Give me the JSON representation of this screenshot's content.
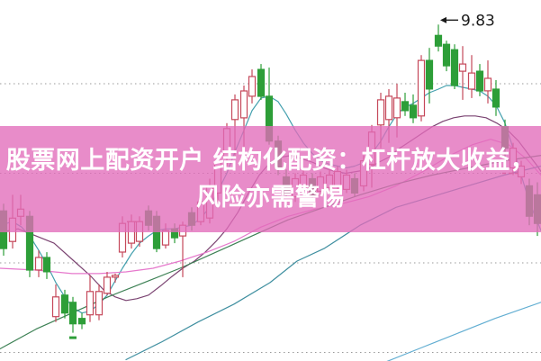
{
  "banner": {
    "line1": "股票网上配资开户 结构化配资：杠杆放大收益，",
    "line2": "风险亦需警惕",
    "bg_color_rgba": "rgba(226,108,186,0.78)",
    "text_color": "#ffffff"
  },
  "annotation": {
    "label": "9.83",
    "text_color": "#1a1a1a",
    "target_x": 487,
    "target_price": 9.83
  },
  "colors": {
    "background": "#ffffff",
    "grid": "#9a9a9a",
    "up_candle": "#c5485a",
    "down_candle": "#2d9e38"
  },
  "chart_data": {
    "type": "candlestick",
    "title": "",
    "xlabel": "",
    "ylabel": "",
    "ylim": [
      7.95,
      10.0
    ],
    "grid": "dotted-horizontal",
    "gridline_prices": [
      9.5,
      9.0,
      8.5,
      8.0
    ],
    "axis_note": "no visible axis labels; single price flag 9.83 at the rally high",
    "candles_format": [
      "x_px",
      "open",
      "high",
      "low",
      "close"
    ],
    "candles": [
      [
        4,
        8.79,
        8.83,
        8.54,
        8.58
      ],
      [
        14,
        8.62,
        8.88,
        8.58,
        8.75
      ],
      [
        23,
        8.76,
        8.88,
        8.71,
        8.8
      ],
      [
        33,
        8.76,
        8.79,
        8.42,
        8.46
      ],
      [
        43,
        8.46,
        8.57,
        8.42,
        8.53
      ],
      [
        52,
        8.53,
        8.56,
        8.41,
        8.45
      ],
      [
        62,
        8.2,
        8.38,
        8.17,
        8.31
      ],
      [
        72,
        8.32,
        8.35,
        8.19,
        8.22
      ],
      [
        81,
        8.28,
        8.31,
        8.11,
        8.16
      ],
      [
        91,
        8.19,
        8.22,
        8.13,
        8.16
      ],
      [
        100,
        8.21,
        8.43,
        8.17,
        8.34
      ],
      [
        110,
        8.21,
        8.38,
        8.18,
        8.34
      ],
      [
        119,
        8.33,
        8.45,
        8.32,
        8.42
      ],
      [
        128,
        8.42,
        8.44,
        8.39,
        8.43
      ],
      [
        136,
        8.56,
        8.76,
        8.53,
        8.72
      ],
      [
        146,
        8.61,
        8.77,
        8.58,
        8.73
      ],
      [
        155,
        8.62,
        8.76,
        8.59,
        8.73
      ],
      [
        165,
        8.79,
        8.82,
        8.68,
        8.71
      ],
      [
        174,
        8.76,
        8.79,
        8.56,
        8.58
      ],
      [
        184,
        8.6,
        8.72,
        8.58,
        8.68
      ],
      [
        194,
        8.69,
        8.72,
        8.61,
        8.64
      ],
      [
        203,
        8.65,
        8.73,
        8.42,
        8.71
      ],
      [
        213,
        8.78,
        8.81,
        8.68,
        8.71
      ],
      [
        223,
        8.73,
        8.88,
        8.71,
        8.84
      ],
      [
        233,
        8.75,
        8.97,
        8.72,
        8.93
      ],
      [
        242,
        8.89,
        9.09,
        8.84,
        9.06
      ],
      [
        252,
        9.09,
        9.28,
        9.04,
        9.25
      ],
      [
        261,
        9.3,
        9.44,
        9.08,
        9.41
      ],
      [
        271,
        9.31,
        9.49,
        9.14,
        9.46
      ],
      [
        280,
        9.43,
        9.58,
        9.39,
        9.54
      ],
      [
        290,
        9.58,
        9.61,
        9.41,
        9.43
      ],
      [
        299,
        9.43,
        9.59,
        9.16,
        9.18
      ],
      [
        309,
        9.18,
        9.21,
        8.99,
        9.03
      ],
      [
        318,
        8.98,
        9.02,
        8.86,
        8.88
      ],
      [
        328,
        8.87,
        9.0,
        8.84,
        8.97
      ],
      [
        337,
        8.91,
        9.03,
        8.89,
        8.99
      ],
      [
        347,
        8.97,
        9.0,
        8.86,
        8.88
      ],
      [
        356,
        8.9,
        9.01,
        8.88,
        8.98
      ],
      [
        366,
        8.92,
        9.02,
        8.89,
        8.99
      ],
      [
        375,
        8.93,
        9.04,
        8.91,
        9.01
      ],
      [
        385,
        8.91,
        9.02,
        8.89,
        8.99
      ],
      [
        394,
        8.97,
        9.0,
        8.87,
        8.89
      ],
      [
        404,
        8.93,
        9.1,
        8.9,
        9.07
      ],
      [
        413,
        9.05,
        9.27,
        8.92,
        9.23
      ],
      [
        423,
        9.27,
        9.45,
        9.14,
        9.41
      ],
      [
        432,
        9.3,
        9.47,
        9.17,
        9.43
      ],
      [
        441,
        9.31,
        9.5,
        9.2,
        9.42
      ],
      [
        450,
        9.4,
        9.45,
        9.32,
        9.35
      ],
      [
        459,
        9.38,
        9.44,
        9.28,
        9.31
      ],
      [
        468,
        9.32,
        9.66,
        9.29,
        9.63
      ],
      [
        477,
        9.63,
        9.7,
        9.39,
        9.47
      ],
      [
        487,
        9.77,
        9.83,
        9.68,
        9.71
      ],
      [
        496,
        9.72,
        9.74,
        9.57,
        9.6
      ],
      [
        505,
        9.69,
        9.72,
        9.47,
        9.49
      ],
      [
        514,
        9.57,
        9.71,
        9.41,
        9.61
      ],
      [
        524,
        9.47,
        9.66,
        9.42,
        9.56
      ],
      [
        533,
        9.57,
        9.61,
        9.43,
        9.46
      ],
      [
        542,
        9.46,
        9.63,
        9.39,
        9.53
      ],
      [
        551,
        9.47,
        9.52,
        9.32,
        9.37
      ],
      [
        561,
        9.26,
        9.3,
        9.09,
        9.14
      ],
      [
        570,
        9.03,
        9.17,
        8.99,
        9.14
      ],
      [
        579,
        8.98,
        9.07,
        8.94,
        9.04
      ],
      [
        588,
        8.93,
        8.97,
        8.71,
        8.76
      ],
      [
        597,
        8.88,
        8.95,
        8.65,
        8.72
      ]
    ],
    "ma_lines": [
      {
        "name": "ma-fast-teal",
        "color": "#44a0ae",
        "points": [
          [
            0,
            8.71
          ],
          [
            14,
            8.73
          ],
          [
            24,
            8.7
          ],
          [
            33,
            8.65
          ],
          [
            43,
            8.57
          ],
          [
            52,
            8.49
          ],
          [
            62,
            8.39
          ],
          [
            72,
            8.31
          ],
          [
            81,
            8.25
          ],
          [
            91,
            8.22
          ],
          [
            100,
            8.23
          ],
          [
            110,
            8.27
          ],
          [
            119,
            8.32
          ],
          [
            128,
            8.4
          ],
          [
            136,
            8.47
          ],
          [
            146,
            8.55
          ],
          [
            155,
            8.61
          ],
          [
            165,
            8.65
          ],
          [
            174,
            8.68
          ],
          [
            184,
            8.69
          ],
          [
            194,
            8.69
          ],
          [
            203,
            8.7
          ],
          [
            213,
            8.71
          ],
          [
            223,
            8.75
          ],
          [
            233,
            8.81
          ],
          [
            242,
            8.9
          ],
          [
            252,
            9.0
          ],
          [
            261,
            9.12
          ],
          [
            271,
            9.24
          ],
          [
            280,
            9.35
          ],
          [
            290,
            9.42
          ],
          [
            299,
            9.43
          ],
          [
            309,
            9.4
          ],
          [
            318,
            9.33
          ],
          [
            328,
            9.24
          ],
          [
            337,
            9.17
          ],
          [
            347,
            9.11
          ],
          [
            356,
            9.07
          ],
          [
            366,
            9.05
          ],
          [
            375,
            9.04
          ],
          [
            385,
            9.03
          ],
          [
            394,
            9.04
          ],
          [
            404,
            9.06
          ],
          [
            413,
            9.11
          ],
          [
            423,
            9.18
          ],
          [
            432,
            9.26
          ],
          [
            441,
            9.33
          ],
          [
            450,
            9.37
          ],
          [
            459,
            9.39
          ],
          [
            468,
            9.42
          ],
          [
            477,
            9.45
          ],
          [
            487,
            9.47
          ],
          [
            496,
            9.49
          ],
          [
            505,
            9.49
          ],
          [
            514,
            9.48
          ],
          [
            524,
            9.47
          ],
          [
            533,
            9.46
          ],
          [
            542,
            9.43
          ],
          [
            551,
            9.38
          ],
          [
            561,
            9.28
          ],
          [
            570,
            9.14
          ],
          [
            579,
            8.99
          ],
          [
            588,
            8.84
          ],
          [
            597,
            8.73
          ],
          [
            601,
            8.68
          ]
        ]
      },
      {
        "name": "ma-mid-purple",
        "color": "#7b4472",
        "points": [
          [
            0,
            8.67
          ],
          [
            20,
            8.69
          ],
          [
            40,
            8.65
          ],
          [
            60,
            8.61
          ],
          [
            80,
            8.52
          ],
          [
            100,
            8.43
          ],
          [
            115,
            8.35
          ],
          [
            128,
            8.31
          ],
          [
            140,
            8.29
          ],
          [
            152,
            8.3
          ],
          [
            165,
            8.32
          ],
          [
            178,
            8.37
          ],
          [
            190,
            8.42
          ],
          [
            203,
            8.47
          ],
          [
            216,
            8.51
          ],
          [
            228,
            8.56
          ],
          [
            240,
            8.62
          ],
          [
            252,
            8.69
          ],
          [
            264,
            8.78
          ],
          [
            276,
            8.89
          ],
          [
            288,
            8.99
          ],
          [
            300,
            9.06
          ],
          [
            312,
            9.09
          ],
          [
            324,
            9.1
          ],
          [
            336,
            9.08
          ],
          [
            348,
            9.06
          ],
          [
            360,
            9.03
          ],
          [
            372,
            9.01
          ],
          [
            384,
            9.0
          ],
          [
            396,
            9.01
          ],
          [
            408,
            9.02
          ],
          [
            420,
            9.06
          ],
          [
            432,
            9.09
          ],
          [
            444,
            9.14
          ],
          [
            456,
            9.18
          ],
          [
            468,
            9.22
          ],
          [
            480,
            9.26
          ],
          [
            492,
            9.29
          ],
          [
            504,
            9.31
          ],
          [
            516,
            9.32
          ],
          [
            528,
            9.32
          ],
          [
            540,
            9.31
          ],
          [
            552,
            9.28
          ],
          [
            564,
            9.24
          ],
          [
            576,
            9.18
          ],
          [
            588,
            9.1
          ],
          [
            597,
            9.04
          ],
          [
            601,
            9.01
          ]
        ]
      },
      {
        "name": "ma-pink",
        "color": "#e678cc",
        "points": [
          [
            0,
            8.47
          ],
          [
            40,
            8.46
          ],
          [
            80,
            8.44
          ],
          [
            110,
            8.44
          ],
          [
            140,
            8.45
          ],
          [
            170,
            8.47
          ],
          [
            200,
            8.51
          ],
          [
            230,
            8.56
          ],
          [
            260,
            8.62
          ],
          [
            290,
            8.7
          ],
          [
            320,
            8.76
          ],
          [
            350,
            8.8
          ],
          [
            380,
            8.83
          ],
          [
            410,
            8.87
          ],
          [
            440,
            8.93
          ],
          [
            470,
            9.01
          ],
          [
            500,
            9.1
          ],
          [
            525,
            9.16
          ],
          [
            545,
            9.19
          ],
          [
            565,
            9.16
          ],
          [
            585,
            9.08
          ],
          [
            601,
            8.99
          ]
        ]
      },
      {
        "name": "ma-slow-green",
        "color": "#3d8155",
        "points": [
          [
            0,
            8.02
          ],
          [
            40,
            8.13
          ],
          [
            80,
            8.22
          ],
          [
            120,
            8.31
          ],
          [
            160,
            8.39
          ],
          [
            200,
            8.47
          ],
          [
            240,
            8.56
          ],
          [
            280,
            8.65
          ],
          [
            320,
            8.74
          ],
          [
            360,
            8.81
          ],
          [
            400,
            8.88
          ],
          [
            440,
            8.94
          ],
          [
            480,
            8.99
          ],
          [
            520,
            9.03
          ],
          [
            560,
            9.07
          ],
          [
            601,
            9.1
          ]
        ]
      },
      {
        "name": "ma-long-blue",
        "color": "#3f8fa0",
        "points": [
          [
            140,
            7.96
          ],
          [
            180,
            8.06
          ],
          [
            220,
            8.17
          ],
          [
            260,
            8.27
          ],
          [
            300,
            8.39
          ],
          [
            330,
            8.51
          ],
          [
            360,
            8.58
          ],
          [
            400,
            8.71
          ],
          [
            440,
            8.81
          ],
          [
            480,
            8.87
          ],
          [
            520,
            8.93
          ],
          [
            560,
            8.99
          ],
          [
            601,
            9.04
          ]
        ]
      },
      {
        "name": "ma-longest-lightblue",
        "color": "#62aed2",
        "points": [
          [
            430,
            7.95
          ],
          [
            470,
            8.03
          ],
          [
            510,
            8.11
          ],
          [
            550,
            8.19
          ],
          [
            601,
            8.28
          ]
        ]
      }
    ],
    "dashed_segments": [
      {
        "x1": 141,
        "x2": 161,
        "price": 8.73,
        "color": "#c5485a"
      },
      {
        "x1": 558,
        "x2": 578,
        "price": 9.0,
        "color": "#c5485a"
      }
    ],
    "markers": [
      {
        "name": "buy-tick",
        "x": 81,
        "price": 8.09,
        "color": "#2d9e38"
      }
    ]
  }
}
